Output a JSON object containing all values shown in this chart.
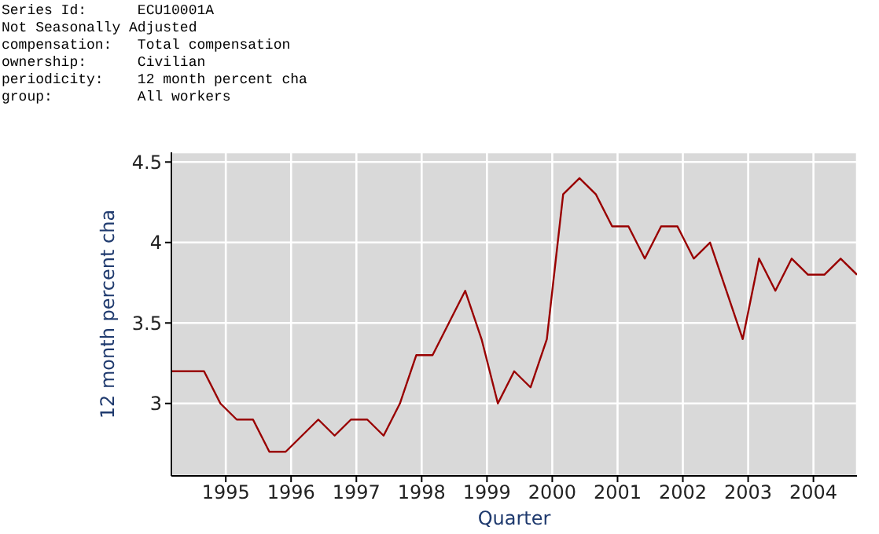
{
  "chart_data": {
    "type": "line",
    "xlabel": "Quarter",
    "ylabel": "12 month percent cha",
    "annotations": [
      "Series Id:      ECU10001A",
      "Not Seasonally Adjusted",
      "compensation:   Total compensation",
      "ownership:      Civilian",
      "periodicity:    12 month percent cha",
      "group:          All workers"
    ],
    "x": [
      1994.167,
      1994.417,
      1994.667,
      1994.917,
      1995.167,
      1995.417,
      1995.667,
      1995.917,
      1996.167,
      1996.417,
      1996.667,
      1996.917,
      1997.167,
      1997.417,
      1997.667,
      1997.917,
      1998.167,
      1998.417,
      1998.667,
      1998.917,
      1999.167,
      1999.417,
      1999.667,
      1999.917,
      2000.167,
      2000.417,
      2000.667,
      2000.917,
      2001.167,
      2001.417,
      2001.667,
      2001.917,
      2002.167,
      2002.417,
      2002.667,
      2002.917,
      2003.167,
      2003.417,
      2003.667,
      2003.917,
      2004.167,
      2004.417,
      2004.667
    ],
    "series": [
      {
        "color": "#990000",
        "values": [
          3.2,
          3.2,
          3.2,
          3.0,
          2.9,
          2.9,
          2.7,
          2.7,
          2.8,
          2.9,
          2.8,
          2.9,
          2.9,
          2.8,
          3.0,
          3.3,
          3.3,
          3.5,
          3.7,
          3.4,
          3.0,
          3.2,
          3.1,
          3.4,
          4.3,
          4.4,
          4.3,
          4.1,
          4.1,
          3.9,
          4.1,
          4.1,
          3.9,
          4.0,
          3.7,
          3.4,
          3.9,
          3.7,
          3.9,
          3.8,
          3.8,
          3.9,
          3.8
        ]
      }
    ],
    "xlim": [
      1994.167,
      2004.667
    ],
    "xticks": [
      1995,
      1996,
      1997,
      1998,
      1999,
      2000,
      2001,
      2002,
      2003,
      2004
    ],
    "ylim": [
      2.55,
      4.56
    ],
    "yticks": [
      3,
      3.5,
      4,
      4.5
    ],
    "grid": true,
    "marker": "none",
    "line_style": "solid"
  }
}
